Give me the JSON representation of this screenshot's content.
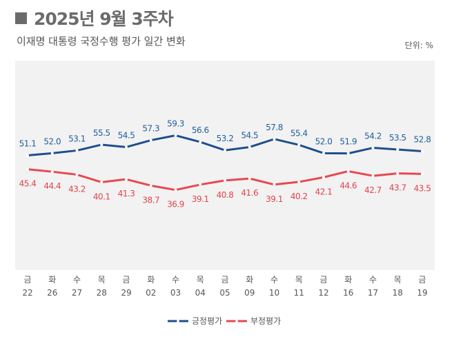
{
  "header": {
    "title": "2025년 9월 3주차",
    "subtitle": "이재명 대통령 국정수행 평가 일간 변화",
    "unit": "단위: %"
  },
  "chart_data": {
    "type": "line",
    "title": "2025년 9월 3주차",
    "subtitle": "이재명 대통령 국정수행 평가 일간 변화",
    "days": [
      "금",
      "화",
      "수",
      "목",
      "금",
      "화",
      "수",
      "목",
      "금",
      "화",
      "수",
      "목",
      "금",
      "화",
      "수",
      "목",
      "금"
    ],
    "categories": [
      "22",
      "26",
      "27",
      "28",
      "29",
      "02",
      "03",
      "04",
      "05",
      "09",
      "10",
      "11",
      "12",
      "16",
      "17",
      "18",
      "19"
    ],
    "ylim": [
      4,
      90
    ],
    "grid": false,
    "legend_position": "bottom",
    "series": [
      {
        "name": "긍정평가",
        "color": "#1f4e8c",
        "label_color": "#1f5f9e",
        "values": [
          51.1,
          52.0,
          53.1,
          55.5,
          54.5,
          57.3,
          59.3,
          56.6,
          53.2,
          54.5,
          57.8,
          55.4,
          52.0,
          51.9,
          54.2,
          53.5,
          52.8
        ]
      },
      {
        "name": "부정평가",
        "color": "#e8474f",
        "label_color": "#e0444c",
        "values": [
          45.4,
          44.4,
          43.2,
          40.1,
          41.3,
          38.7,
          36.9,
          39.1,
          40.8,
          41.6,
          39.1,
          40.2,
          42.1,
          44.6,
          42.7,
          43.7,
          43.5
        ]
      }
    ]
  }
}
